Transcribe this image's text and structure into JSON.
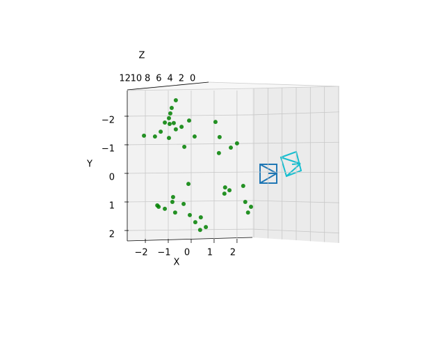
{
  "chart_data": {
    "type": "scatter3d",
    "xlabel": "X",
    "ylabel": "Y",
    "zlabel": "Z",
    "xlim": [
      -2.79,
      2.58
    ],
    "ylim": [
      -2.9,
      2.34
    ],
    "zlim": [
      12.2,
      -0.1
    ],
    "xticks": [
      {
        "value": -2,
        "label": "−2"
      },
      {
        "value": -1,
        "label": "−1"
      },
      0,
      1,
      2
    ],
    "yticks": [
      {
        "value": -2,
        "label": "−2"
      },
      {
        "value": -1,
        "label": "−1"
      },
      0,
      1,
      2
    ],
    "zticks": [
      12,
      10,
      8,
      6,
      4,
      2,
      0
    ],
    "color": "#008000",
    "x": [
      -0.67,
      -0.85,
      -0.91,
      -0.97,
      -1.15,
      -0.76,
      -0.94,
      -0.42,
      -0.09,
      -1.33,
      -0.67,
      -2.06,
      -1.58,
      -0.97,
      0.15,
      -0.3,
      1.06,
      1.24,
      2.0,
      1.73,
      1.21,
      -0.12,
      1.48,
      2.27,
      1.67,
      1.45,
      -0.79,
      -0.82,
      -1.48,
      -1.42,
      -1.15,
      -0.33,
      2.36,
      2.61,
      2.48,
      -0.7,
      -0.06,
      0.42,
      0.18,
      0.64,
      0.39
    ],
    "y": [
      -2.56,
      -2.29,
      -2.1,
      -1.93,
      -1.78,
      -1.76,
      -1.73,
      -1.63,
      -1.85,
      -1.46,
      -1.54,
      -1.32,
      -1.29,
      -1.24,
      -1.29,
      -0.93,
      -1.8,
      -1.27,
      -1.05,
      -0.9,
      -0.71,
      0.37,
      0.49,
      0.44,
      0.59,
      0.71,
      0.83,
      1.0,
      1.12,
      1.17,
      1.24,
      1.07,
      1.0,
      1.17,
      1.37,
      1.37,
      1.46,
      1.54,
      1.71,
      1.88,
      1.98
    ]
  }
}
